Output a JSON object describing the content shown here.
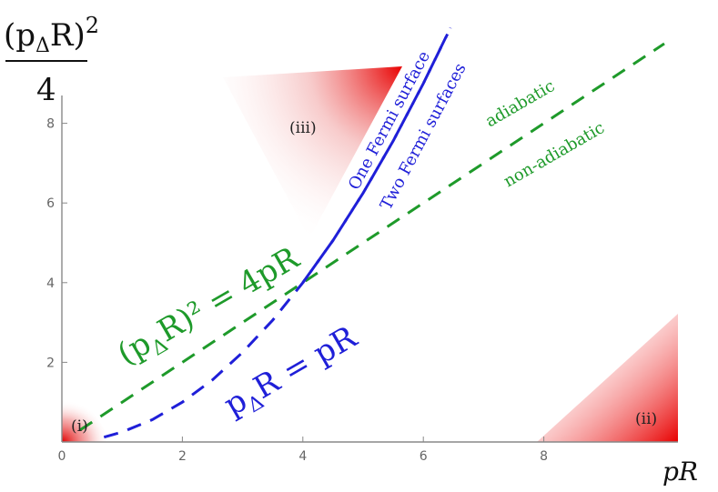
{
  "chart_data": {
    "type": "line",
    "xlabel": "pR",
    "ylabel": "(p_ΔR)^2 / 4",
    "ylabel_parts": {
      "num_base": "(p",
      "num_sub": "Δ",
      "num_rest": "R)",
      "num_sup": "2",
      "den": "4"
    },
    "xlim": [
      0,
      10.2
    ],
    "ylim": [
      0,
      10.2
    ],
    "x_ticks": [
      0,
      2,
      4,
      6,
      8
    ],
    "y_ticks": [
      2,
      4,
      6,
      8
    ],
    "series": [
      {
        "name": "(p_ΔR)^2 = 4pR",
        "color": "#1e9a2a",
        "dash": "dashed",
        "x": [
          0.3,
          2,
          4,
          6,
          8,
          10
        ],
        "y": [
          0.3,
          2,
          4,
          6,
          8,
          10
        ]
      },
      {
        "name": "p_ΔR = pR",
        "color": "#1f1fd8",
        "dash": "dashed",
        "x": [
          0.7,
          1,
          1.5,
          2,
          2.5,
          3,
          3.5,
          4,
          4.5,
          5,
          5.5,
          6,
          6.4
        ],
        "y": [
          0.12,
          0.25,
          0.56,
          1.0,
          1.56,
          2.25,
          3.06,
          4.0,
          5.06,
          6.25,
          7.56,
          9.0,
          10.24
        ]
      },
      {
        "name": "",
        "color": "#1f1fd8",
        "dash": "dashed",
        "x": [
          4,
          4.5,
          5,
          5.5,
          6,
          6.45
        ],
        "y": [
          4,
          5.06,
          6.25,
          7.56,
          9.0,
          10.4
        ]
      }
    ],
    "annotations": {
      "eq_green": "(p_ΔR)² = 4pR",
      "eq_green_parts": {
        "a": "(p",
        "sub": "Δ",
        "b": "R)² = 4pR"
      },
      "eq_blue_parts": {
        "a": "p",
        "sub": "Δ",
        "b": "R = pR"
      },
      "one_fermi": "One Fermi surface",
      "two_fermi": "Two Fermi surfaces",
      "adiabatic": "adiabatic",
      "non_adiabatic": "non-adiabatic",
      "region_i": "(i)",
      "region_ii": "(ii)",
      "region_iii": "(iii)"
    },
    "grid": false,
    "legend": "none"
  }
}
